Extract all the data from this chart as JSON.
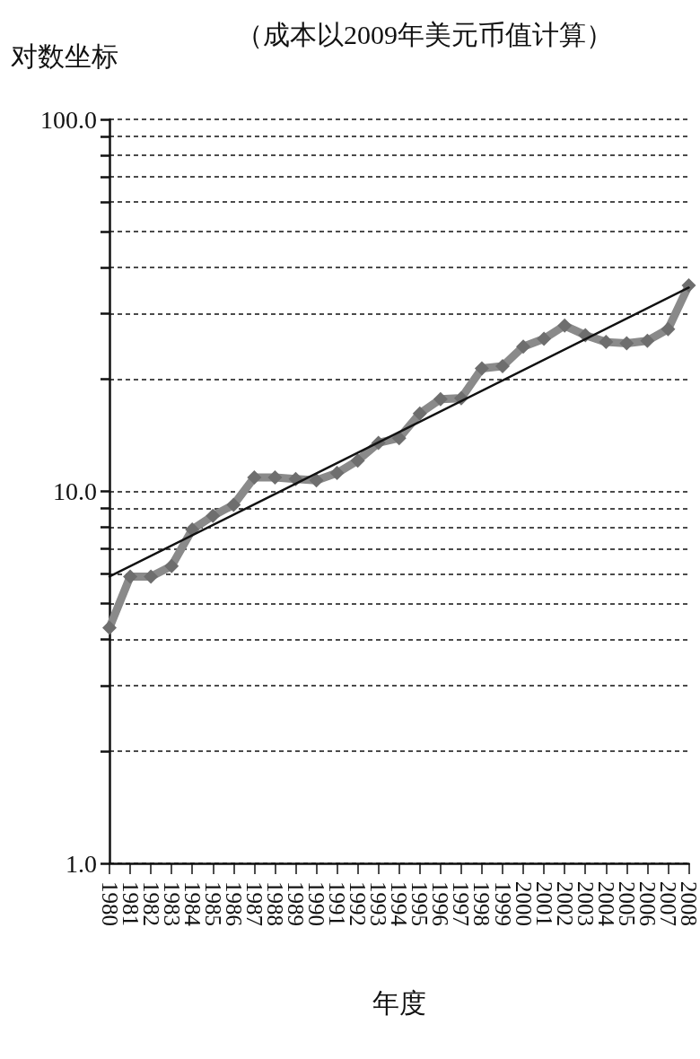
{
  "chart_data": {
    "type": "line",
    "title": "（成本以2009年美元币值计算）",
    "ylabel": "对数坐标",
    "xlabel": "年度",
    "categories": [
      "1980",
      "1981",
      "1982",
      "1983",
      "1984",
      "1985",
      "1986",
      "1987",
      "1988",
      "1989",
      "1990",
      "1991",
      "1992",
      "1993",
      "1994",
      "1995",
      "1996",
      "1997",
      "1998",
      "1999",
      "2000",
      "2001",
      "2002",
      "2003",
      "2004",
      "2005",
      "2006",
      "2007",
      "2008"
    ],
    "series": [
      {
        "color": "#8a8a8a",
        "marker": "diamond",
        "values": [
          4.3,
          5.9,
          5.9,
          6.3,
          7.9,
          8.6,
          9.2,
          10.9,
          10.9,
          10.8,
          10.7,
          11.2,
          12.1,
          13.5,
          13.9,
          16.2,
          17.7,
          17.8,
          21.4,
          21.7,
          24.5,
          25.7,
          27.9,
          26.3,
          25.2,
          25.0,
          25.4,
          27.3,
          35.8
        ]
      },
      {
        "type": "line",
        "color": "#111111",
        "marker": "none",
        "values": [
          5.9,
          null,
          null,
          null,
          null,
          null,
          null,
          null,
          null,
          null,
          null,
          null,
          null,
          null,
          null,
          null,
          null,
          null,
          null,
          null,
          null,
          null,
          null,
          null,
          null,
          null,
          null,
          null,
          35.3
        ]
      }
    ],
    "log": "y",
    "ylim": [
      1,
      100
    ],
    "yticks": [
      {
        "value": 1,
        "label": "1.0"
      },
      {
        "value": 2,
        "label": null
      },
      {
        "value": 3,
        "label": null
      },
      {
        "value": 4,
        "label": null
      },
      {
        "value": 5,
        "label": null
      },
      {
        "value": 6,
        "label": null
      },
      {
        "value": 7,
        "label": null
      },
      {
        "value": 8,
        "label": null
      },
      {
        "value": 9,
        "label": null
      },
      {
        "value": 10,
        "label": "10.0"
      },
      {
        "value": 20,
        "label": null
      },
      {
        "value": 30,
        "label": null
      },
      {
        "value": 40,
        "label": null
      },
      {
        "value": 50,
        "label": null
      },
      {
        "value": 60,
        "label": null
      },
      {
        "value": 70,
        "label": null
      },
      {
        "value": 80,
        "label": null
      },
      {
        "value": 90,
        "label": null
      },
      {
        "value": 100,
        "label": "100.0"
      }
    ],
    "grid": "y",
    "line_style": "solid"
  }
}
